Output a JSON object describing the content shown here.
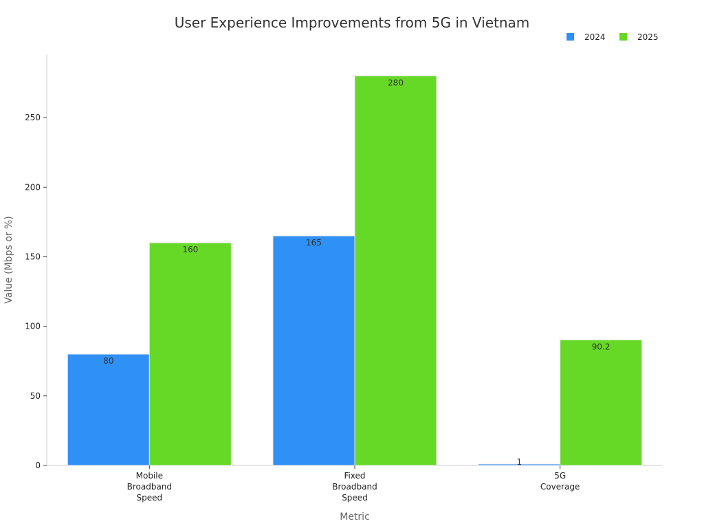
{
  "chart_data": {
    "type": "bar",
    "title": "User Experience Improvements from 5G in Vietnam",
    "xlabel": "Metric",
    "ylabel": "Value (Mbps or %)",
    "categories": [
      [
        "Mobile",
        "Broadband",
        "Speed"
      ],
      [
        "Fixed",
        "Broadband",
        "Speed"
      ],
      [
        "5G",
        "Coverage"
      ]
    ],
    "series": [
      {
        "name": "2024",
        "color": "#2f90f6",
        "values": [
          80,
          165,
          1
        ],
        "labels": [
          "80",
          "165",
          "1"
        ]
      },
      {
        "name": "2025",
        "color": "#66d926",
        "values": [
          160,
          280,
          90.2
        ],
        "labels": [
          "160",
          "280",
          "90.2"
        ]
      }
    ],
    "ylim": [
      0,
      295
    ],
    "yticks": [
      0,
      50,
      100,
      150,
      200,
      250
    ],
    "grid": false,
    "legend": "top-right"
  }
}
